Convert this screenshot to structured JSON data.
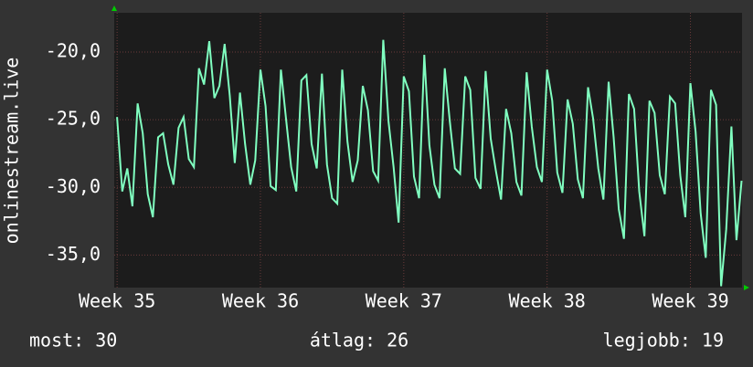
{
  "chart_data": {
    "type": "line",
    "y_label": "onlinestream.live",
    "color": "#80ffc0",
    "grid": true,
    "xlim": [
      34.98,
      39.36
    ],
    "xticks": [
      {
        "value": 35,
        "label": "Week 35"
      },
      {
        "value": 36,
        "label": "Week 36"
      },
      {
        "value": 37,
        "label": "Week 37"
      },
      {
        "value": 38,
        "label": "Week 38"
      },
      {
        "value": 39,
        "label": "Week 39"
      }
    ],
    "ylim": [
      -37.4,
      -17.1
    ],
    "yticks": [
      {
        "value": -20,
        "label": "-20,0"
      },
      {
        "value": -25,
        "label": "-25,0"
      },
      {
        "value": -30,
        "label": "-30,0"
      },
      {
        "value": -35,
        "label": "-35,0"
      }
    ],
    "x": [
      35.0,
      35.036,
      35.071,
      35.107,
      35.143,
      35.179,
      35.214,
      35.25,
      35.286,
      35.321,
      35.357,
      35.393,
      35.429,
      35.464,
      35.5,
      35.536,
      35.571,
      35.607,
      35.643,
      35.679,
      35.714,
      35.75,
      35.786,
      35.821,
      35.857,
      35.893,
      35.929,
      35.964,
      36.0,
      36.036,
      36.071,
      36.107,
      36.143,
      36.179,
      36.214,
      36.25,
      36.286,
      36.321,
      36.357,
      36.393,
      36.429,
      36.464,
      36.5,
      36.536,
      36.571,
      36.607,
      36.643,
      36.679,
      36.714,
      36.75,
      36.786,
      36.821,
      36.857,
      36.893,
      36.929,
      36.964,
      37.0,
      37.036,
      37.071,
      37.107,
      37.143,
      37.179,
      37.214,
      37.25,
      37.286,
      37.321,
      37.357,
      37.393,
      37.429,
      37.464,
      37.5,
      37.536,
      37.571,
      37.607,
      37.643,
      37.679,
      37.714,
      37.75,
      37.786,
      37.821,
      37.857,
      37.893,
      37.929,
      37.964,
      38.0,
      38.036,
      38.071,
      38.107,
      38.143,
      38.179,
      38.214,
      38.25,
      38.286,
      38.321,
      38.357,
      38.393,
      38.429,
      38.464,
      38.5,
      38.536,
      38.571,
      38.607,
      38.643,
      38.679,
      38.714,
      38.75,
      38.786,
      38.821,
      38.857,
      38.893,
      38.929,
      38.964,
      39.0,
      39.036,
      39.071,
      39.107,
      39.143,
      39.179,
      39.214,
      39.25,
      39.286,
      39.321,
      39.357
    ],
    "values": [
      -24.8,
      -30.3,
      -28.6,
      -31.4,
      -23.8,
      -26,
      -30.5,
      -32.2,
      -26.3,
      -26,
      -28.3,
      -29.8,
      -25.6,
      -24.8,
      -27.9,
      -28.5,
      -21.2,
      -22.4,
      -19.2,
      -23.4,
      -22.5,
      -19.4,
      -23.2,
      -28.2,
      -23,
      -26.8,
      -29.8,
      -28,
      -21.3,
      -24,
      -29.9,
      -30.2,
      -21.3,
      -25,
      -28.5,
      -30.3,
      -22.1,
      -21.7,
      -26.8,
      -28.6,
      -21.6,
      -28.3,
      -30.8,
      -31.2,
      -21.3,
      -26.6,
      -29.6,
      -28,
      -22.5,
      -24.3,
      -28.8,
      -29.5,
      -19.1,
      -25.1,
      -28.5,
      -32.6,
      -21.8,
      -22.9,
      -29.2,
      -30.8,
      -20.2,
      -26.9,
      -29.8,
      -30.8,
      -21.2,
      -25.1,
      -28.6,
      -29,
      -21.8,
      -22.8,
      -29.3,
      -30.1,
      -21.4,
      -26.4,
      -28.8,
      -30.9,
      -24.2,
      -26,
      -29.6,
      -30.6,
      -21.5,
      -25.5,
      -28.5,
      -29.6,
      -21.3,
      -23.6,
      -28.9,
      -30.4,
      -23.5,
      -25.3,
      -29.4,
      -30.8,
      -22.6,
      -24.9,
      -28.6,
      -30.9,
      -22.2,
      -26.3,
      -31.6,
      -33.8,
      -23.1,
      -24.2,
      -30.3,
      -33.6,
      -23.6,
      -24.5,
      -29.1,
      -30.5,
      -23.3,
      -23.8,
      -29.1,
      -32.2,
      -22.3,
      -25.9,
      -31.9,
      -35.2,
      -22.8,
      -23.9,
      -37.3,
      -33.1,
      -25.5,
      -33.9,
      -29.5
    ],
    "stats": [
      "most: 30",
      "átlag: 26",
      "legjobb: 19"
    ]
  }
}
